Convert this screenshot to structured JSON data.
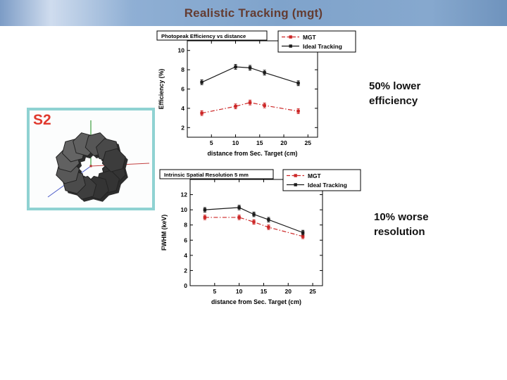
{
  "slide": {
    "title": "Realistic Tracking (mgt)"
  },
  "figure": {
    "label": "S2"
  },
  "notes": {
    "efficiency": "50% lower efficiency",
    "resolution": "10% worse resolution"
  },
  "colors": {
    "header_blue": "#86a8ce",
    "accent_red": "#e0392e",
    "figure_border_teal": "#8fd2d2",
    "series_mgt_red": "#cc2626",
    "series_ideal_black": "#1a1a1a"
  },
  "chart_data": [
    {
      "type": "line",
      "title": "Photopeak Efficiency vs distance",
      "xlabel": "distance from Sec. Target (cm)",
      "ylabel": "Efficiency (%)",
      "xlim": [
        0,
        27
      ],
      "ylim": [
        1,
        11
      ],
      "xticks": [
        5,
        10,
        15,
        20,
        25
      ],
      "yticks": [
        2,
        4,
        6,
        8,
        10
      ],
      "grid": false,
      "legend_position": "top-right",
      "series": [
        {
          "name": "MGT",
          "color": "#cc2626",
          "dash": true,
          "yerr": 0.25,
          "x": [
            3,
            10,
            13,
            16,
            23
          ],
          "y": [
            3.5,
            4.2,
            4.6,
            4.3,
            3.7
          ]
        },
        {
          "name": "Ideal Tracking",
          "color": "#1a1a1a",
          "dash": false,
          "yerr": 0.25,
          "x": [
            3,
            10,
            13,
            16,
            23
          ],
          "y": [
            6.7,
            8.3,
            8.2,
            7.7,
            6.6
          ]
        }
      ]
    },
    {
      "type": "line",
      "title": "Intrinsic Spatial Resolution 5 mm",
      "xlabel": "distance from Sec. Target (cm)",
      "ylabel": "FWHM (keV)",
      "xlim": [
        0,
        27
      ],
      "ylim": [
        0,
        14
      ],
      "xticks": [
        5,
        10,
        15,
        20,
        25
      ],
      "yticks": [
        0,
        2,
        4,
        6,
        8,
        10,
        12
      ],
      "grid": false,
      "legend_position": "top-right",
      "series": [
        {
          "name": "MGT",
          "color": "#cc2626",
          "dash": true,
          "yerr": 0.3,
          "x": [
            3,
            10,
            13,
            16,
            23
          ],
          "y": [
            9.0,
            9.0,
            8.4,
            7.7,
            6.5
          ]
        },
        {
          "name": "Ideal Tracking",
          "color": "#1a1a1a",
          "dash": false,
          "yerr": 0.3,
          "x": [
            3,
            10,
            13,
            16,
            23
          ],
          "y": [
            10.0,
            10.3,
            9.4,
            8.7,
            7.0
          ]
        }
      ]
    }
  ]
}
